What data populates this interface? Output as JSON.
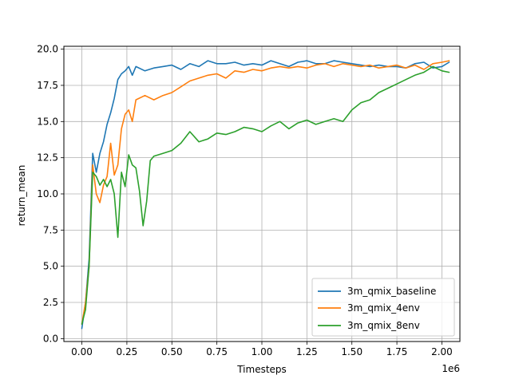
{
  "chart_data": {
    "type": "line",
    "xlabel": "Timesteps",
    "ylabel": "return_mean",
    "x_offset_label": "1e6",
    "x_scale": 1000000,
    "xlim": [
      -0.1,
      2.1
    ],
    "ylim": [
      -0.2,
      20.2
    ],
    "xticks": [
      "0.00",
      "0.25",
      "0.50",
      "0.75",
      "1.00",
      "1.25",
      "1.50",
      "1.75",
      "2.00"
    ],
    "yticks": [
      "0.0",
      "2.5",
      "5.0",
      "7.5",
      "10.0",
      "12.5",
      "15.0",
      "17.5",
      "20.0"
    ],
    "grid": true,
    "legend_loc": "lower right",
    "series": [
      {
        "name": "3m_qmix_baseline",
        "color": "#1f77b4",
        "x": [
          0.0,
          0.02,
          0.04,
          0.06,
          0.08,
          0.1,
          0.12,
          0.14,
          0.16,
          0.18,
          0.2,
          0.22,
          0.24,
          0.26,
          0.28,
          0.3,
          0.35,
          0.4,
          0.45,
          0.5,
          0.55,
          0.6,
          0.65,
          0.7,
          0.75,
          0.8,
          0.85,
          0.9,
          0.95,
          1.0,
          1.05,
          1.1,
          1.15,
          1.2,
          1.25,
          1.3,
          1.35,
          1.4,
          1.45,
          1.5,
          1.55,
          1.6,
          1.65,
          1.7,
          1.75,
          1.8,
          1.85,
          1.9,
          1.95,
          2.0,
          2.04
        ],
        "y": [
          0.7,
          2.5,
          5.5,
          12.8,
          11.5,
          12.8,
          13.6,
          14.8,
          15.6,
          16.6,
          17.9,
          18.3,
          18.5,
          18.8,
          18.2,
          18.8,
          18.5,
          18.7,
          18.8,
          18.9,
          18.6,
          19.0,
          18.8,
          19.2,
          19.0,
          19.0,
          19.1,
          18.9,
          19.0,
          18.9,
          19.2,
          19.0,
          18.8,
          19.1,
          19.2,
          19.0,
          19.0,
          19.2,
          19.1,
          19.0,
          18.9,
          18.8,
          18.9,
          18.8,
          18.8,
          18.7,
          19.0,
          19.1,
          18.7,
          18.8,
          19.1
        ]
      },
      {
        "name": "3m_qmix_4env",
        "color": "#ff7f0e",
        "x": [
          0.0,
          0.02,
          0.04,
          0.06,
          0.08,
          0.1,
          0.12,
          0.14,
          0.16,
          0.18,
          0.2,
          0.22,
          0.24,
          0.26,
          0.28,
          0.3,
          0.35,
          0.4,
          0.45,
          0.5,
          0.55,
          0.6,
          0.65,
          0.7,
          0.75,
          0.8,
          0.85,
          0.9,
          0.95,
          1.0,
          1.05,
          1.1,
          1.15,
          1.2,
          1.25,
          1.3,
          1.35,
          1.4,
          1.45,
          1.5,
          1.55,
          1.6,
          1.65,
          1.7,
          1.75,
          1.8,
          1.85,
          1.9,
          1.95,
          2.0,
          2.04
        ],
        "y": [
          1.0,
          2.5,
          5.0,
          12.0,
          10.0,
          9.4,
          10.6,
          11.2,
          13.5,
          11.3,
          12.0,
          14.5,
          15.5,
          15.8,
          15.0,
          16.5,
          16.8,
          16.5,
          16.8,
          17.0,
          17.4,
          17.8,
          18.0,
          18.2,
          18.3,
          18.0,
          18.5,
          18.4,
          18.6,
          18.5,
          18.7,
          18.8,
          18.7,
          18.8,
          18.7,
          18.9,
          19.0,
          18.8,
          19.0,
          18.9,
          18.8,
          18.9,
          18.7,
          18.8,
          18.9,
          18.7,
          18.9,
          18.6,
          19.0,
          19.1,
          19.2
        ]
      },
      {
        "name": "3m_qmix_8env",
        "color": "#2ca02c",
        "x": [
          0.0,
          0.02,
          0.04,
          0.06,
          0.08,
          0.1,
          0.12,
          0.14,
          0.16,
          0.18,
          0.2,
          0.22,
          0.24,
          0.26,
          0.28,
          0.3,
          0.32,
          0.34,
          0.36,
          0.38,
          0.4,
          0.45,
          0.5,
          0.55,
          0.6,
          0.65,
          0.7,
          0.75,
          0.8,
          0.85,
          0.9,
          0.95,
          1.0,
          1.05,
          1.1,
          1.15,
          1.2,
          1.25,
          1.3,
          1.35,
          1.4,
          1.45,
          1.5,
          1.55,
          1.6,
          1.65,
          1.7,
          1.75,
          1.8,
          1.85,
          1.9,
          1.95,
          2.0,
          2.04
        ],
        "y": [
          1.0,
          2.0,
          5.0,
          11.5,
          11.2,
          10.6,
          11.0,
          10.5,
          11.0,
          10.0,
          7.0,
          11.5,
          10.5,
          12.7,
          12.0,
          11.8,
          10.2,
          7.8,
          9.5,
          12.3,
          12.6,
          12.8,
          13.0,
          13.5,
          14.3,
          13.6,
          13.8,
          14.2,
          14.1,
          14.3,
          14.6,
          14.5,
          14.3,
          14.7,
          15.0,
          14.5,
          14.9,
          15.1,
          14.8,
          15.0,
          15.2,
          15.0,
          15.8,
          16.3,
          16.5,
          17.0,
          17.3,
          17.6,
          17.9,
          18.2,
          18.4,
          18.8,
          18.5,
          18.4
        ]
      }
    ]
  }
}
